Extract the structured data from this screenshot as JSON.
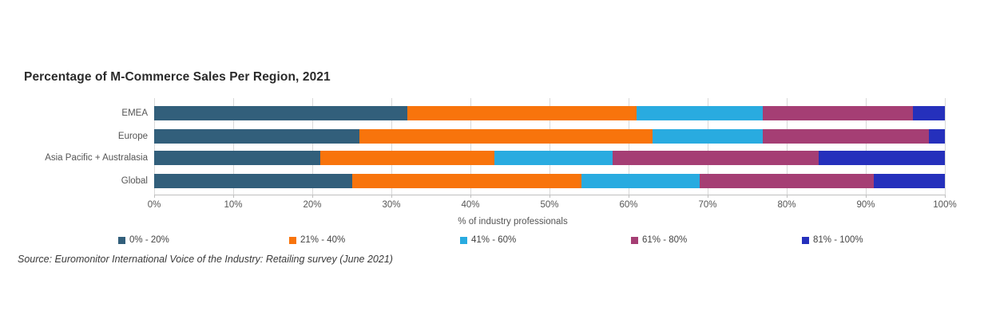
{
  "title": "Percentage of M-Commerce Sales Per Region, 2021",
  "source": "Source: Euromonitor International Voice of the Industry: Retailing survey (June 2021)",
  "chart_data": {
    "type": "bar",
    "stacked": true,
    "orientation": "horizontal",
    "title": "Percentage of M-Commerce Sales Per Region, 2021",
    "xlabel": "% of industry professionals",
    "xlim": [
      0,
      100
    ],
    "xticks": [
      "0%",
      "10%",
      "20%",
      "30%",
      "40%",
      "50%",
      "60%",
      "70%",
      "80%",
      "90%",
      "100%"
    ],
    "grid": true,
    "legend_position": "bottom",
    "categories": [
      "EMEA",
      "Europe",
      "Asia Pacific + Australasia",
      "Global"
    ],
    "series": [
      {
        "name": "0% - 20%",
        "color": "#325f7b",
        "values": [
          32,
          26,
          21,
          25
        ]
      },
      {
        "name": "21% - 40%",
        "color": "#f8740c",
        "values": [
          29,
          37,
          22,
          29
        ]
      },
      {
        "name": "41% - 60%",
        "color": "#29abe0",
        "values": [
          16,
          14,
          15,
          15
        ]
      },
      {
        "name": "61% - 80%",
        "color": "#a53e74",
        "values": [
          19,
          21,
          26,
          22
        ]
      },
      {
        "name": "81% - 100%",
        "color": "#2530bc",
        "values": [
          4,
          2,
          16,
          9
        ]
      }
    ]
  }
}
